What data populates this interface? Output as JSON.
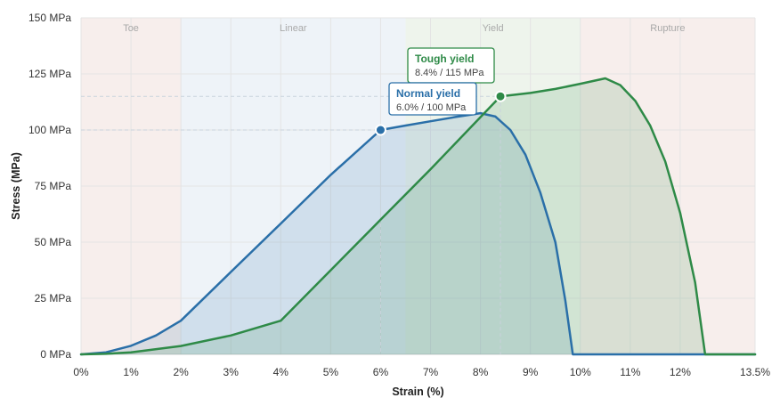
{
  "chart_data": {
    "type": "area",
    "xlabel": "Strain (%)",
    "ylabel": "Stress (MPa)",
    "xlim": [
      0,
      13.5
    ],
    "ylim": [
      0,
      150
    ],
    "x_ticks": [
      {
        "value": 0,
        "label": "0%"
      },
      {
        "value": 1,
        "label": "1%"
      },
      {
        "value": 2,
        "label": "2%"
      },
      {
        "value": 3,
        "label": "3%"
      },
      {
        "value": 4,
        "label": "4%"
      },
      {
        "value": 5,
        "label": "5%"
      },
      {
        "value": 6,
        "label": "6%"
      },
      {
        "value": 7,
        "label": "7%"
      },
      {
        "value": 8,
        "label": "8%"
      },
      {
        "value": 9,
        "label": "9%"
      },
      {
        "value": 10,
        "label": "10%"
      },
      {
        "value": 11,
        "label": "11%"
      },
      {
        "value": 12,
        "label": "12%"
      },
      {
        "value": 13.5,
        "label": "13.5%"
      }
    ],
    "y_ticks": [
      {
        "value": 0,
        "label": "0 MPa"
      },
      {
        "value": 25,
        "label": "25 MPa"
      },
      {
        "value": 50,
        "label": "50 MPa"
      },
      {
        "value": 75,
        "label": "75 MPa"
      },
      {
        "value": 100,
        "label": "100 MPa"
      },
      {
        "value": 125,
        "label": "125 MPa"
      },
      {
        "value": 150,
        "label": "150 MPa"
      }
    ],
    "grid": true,
    "regions": [
      {
        "label": "Toe",
        "x0": 0,
        "x1": 2,
        "color": "#f7eeec"
      },
      {
        "label": "Linear",
        "x0": 2,
        "x1": 6.5,
        "color": "#eef3f8"
      },
      {
        "label": "Yield",
        "x0": 6.5,
        "x1": 10,
        "color": "#eef4ec"
      },
      {
        "label": "Rupture",
        "x0": 10,
        "x1": 13.5,
        "color": "#f7eeec"
      }
    ],
    "series": [
      {
        "name": "Normal yield",
        "color": "#2a6fa8",
        "points": [
          [
            0,
            0
          ],
          [
            0.5,
            0.9
          ],
          [
            1,
            3.8
          ],
          [
            1.5,
            8.4
          ],
          [
            2,
            15
          ],
          [
            3,
            36.7
          ],
          [
            4,
            58.3
          ],
          [
            5,
            80
          ],
          [
            6,
            100
          ],
          [
            6.5,
            102
          ],
          [
            7,
            103.9
          ],
          [
            7.5,
            105.8
          ],
          [
            8,
            107.5
          ],
          [
            8.3,
            106
          ],
          [
            8.6,
            100
          ],
          [
            8.9,
            89
          ],
          [
            9.2,
            72
          ],
          [
            9.5,
            50
          ],
          [
            9.7,
            24
          ],
          [
            9.85,
            0
          ],
          [
            13.5,
            0
          ]
        ],
        "yield_point": {
          "x": 6,
          "y": 100
        }
      },
      {
        "name": "Tough yield",
        "color": "#2e8a47",
        "points": [
          [
            0,
            0
          ],
          [
            0.5,
            0.25
          ],
          [
            1,
            0.9
          ],
          [
            2,
            3.75
          ],
          [
            3,
            8.4
          ],
          [
            4,
            15
          ],
          [
            5,
            37.5
          ],
          [
            6,
            60
          ],
          [
            7,
            82.5
          ],
          [
            8.4,
            115
          ],
          [
            9,
            116.5
          ],
          [
            9.5,
            118.3
          ],
          [
            10,
            120.6
          ],
          [
            10.5,
            123
          ],
          [
            10.8,
            120
          ],
          [
            11.1,
            113
          ],
          [
            11.4,
            102
          ],
          [
            11.7,
            86
          ],
          [
            12,
            63
          ],
          [
            12.3,
            32
          ],
          [
            12.5,
            0
          ],
          [
            13.5,
            0
          ]
        ],
        "yield_point": {
          "x": 8.4,
          "y": 115
        }
      }
    ],
    "annotations": [
      {
        "title": "Tough yield",
        "text": "8.4% / 115 MPa",
        "series": 1
      },
      {
        "title": "Normal yield",
        "text": "6.0% / 100 MPa",
        "series": 0
      }
    ]
  }
}
